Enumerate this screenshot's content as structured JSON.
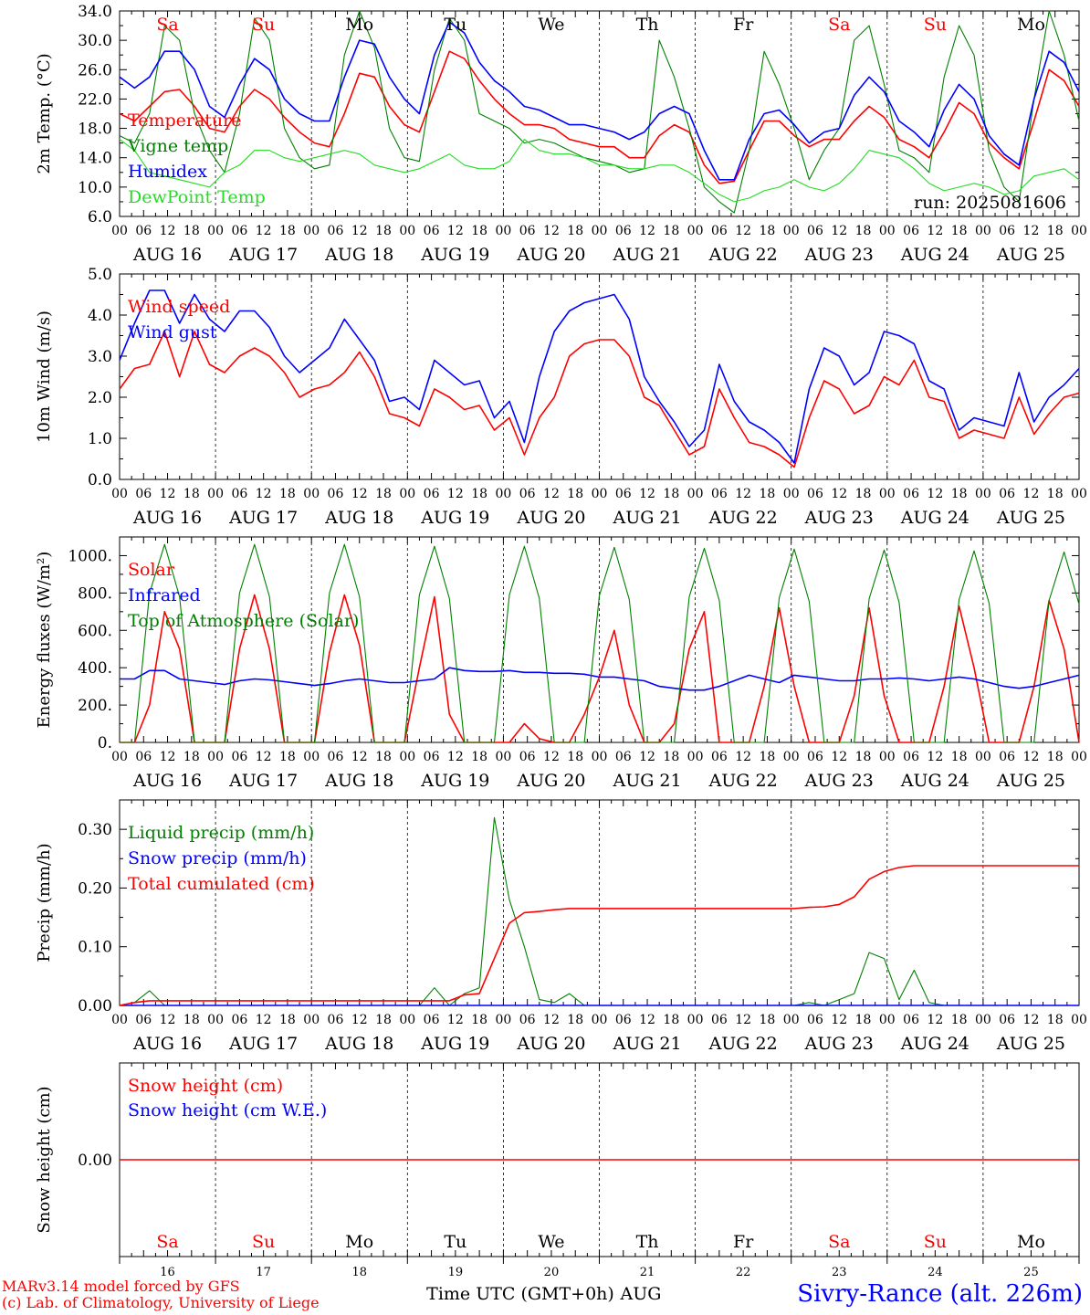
{
  "x_axis": {
    "hour_ticks": [
      "00",
      "06",
      "12",
      "18"
    ],
    "dates": [
      "AUG 16",
      "AUG 17",
      "AUG 18",
      "AUG 19",
      "AUG 20",
      "AUG 21",
      "AUG 22",
      "AUG 23",
      "AUG 24",
      "AUG 25"
    ],
    "weekdays": [
      "Sa",
      "Su",
      "Mo",
      "Tu",
      "We",
      "Th",
      "Fr",
      "Sa",
      "Su",
      "Mo"
    ],
    "weekend_flags": [
      true,
      true,
      false,
      false,
      false,
      false,
      false,
      true,
      true,
      false
    ],
    "day_numbers": [
      "16",
      "17",
      "18",
      "19",
      "20",
      "21",
      "22",
      "23",
      "24",
      "25"
    ],
    "title": "Time UTC (GMT+0h)",
    "month": "AUG"
  },
  "run_label": "run: 2025081606",
  "footer": {
    "line1": "MARv3.14 model forced by GFS",
    "line2": "(c) Lab. of Climatology, University of Liege",
    "station": "Sivry-Rance (alt. 226m)"
  },
  "colors": {
    "red": "#ff0000",
    "green": "#008000",
    "blue": "#0000ff",
    "lightgreen": "#22dd22",
    "weekend": "#ff0000"
  },
  "chart_data": [
    {
      "type": "line",
      "ylabel": "2m Temp. (°C)",
      "ylim": [
        6.0,
        34.0
      ],
      "yticks": [
        "6.0",
        "10.0",
        "14.0",
        "18.0",
        "22.0",
        "26.0",
        "30.0",
        "34.0"
      ],
      "x_hours_step": 6,
      "series": [
        {
          "name": "Temperature",
          "color": "#ff0000",
          "values": [
            20.0,
            19.0,
            21.0,
            23.0,
            23.3,
            21.0,
            18.0,
            17.5,
            21.0,
            23.3,
            22.0,
            19.5,
            17.5,
            16.0,
            15.5,
            20.0,
            25.5,
            25.0,
            21.0,
            18.5,
            17.5,
            23.0,
            28.5,
            27.5,
            24.5,
            22.0,
            20.0,
            18.5,
            18.5,
            18.0,
            16.5,
            16.0,
            15.5,
            15.5,
            14.0,
            14.0,
            17.0,
            18.5,
            17.5,
            13.0,
            10.5,
            10.8,
            15.0,
            19.0,
            19.0,
            17.0,
            15.5,
            16.5,
            16.5,
            19.0,
            21.0,
            19.5,
            16.5,
            15.5,
            14.0,
            17.5,
            21.5,
            20.0,
            16.0,
            14.0,
            12.5,
            19.0,
            26.0,
            24.5,
            21.0
          ]
        },
        {
          "name": "Vigne temp",
          "color": "#008000",
          "values": [
            17.0,
            16.0,
            20.0,
            32.0,
            30.0,
            20.0,
            15.0,
            12.0,
            20.0,
            33.0,
            30.0,
            18.0,
            14.0,
            12.5,
            13.0,
            28.0,
            34.0,
            29.0,
            18.0,
            14.0,
            13.5,
            26.0,
            33.0,
            30.0,
            20.0,
            19.0,
            18.0,
            16.0,
            16.5,
            16.0,
            15.0,
            14.0,
            13.5,
            13.0,
            12.0,
            12.5,
            30.0,
            25.0,
            18.0,
            10.0,
            8.0,
            6.5,
            15.0,
            28.5,
            24.0,
            18.0,
            11.0,
            15.0,
            18.0,
            30.0,
            32.0,
            24.0,
            15.0,
            14.0,
            12.0,
            25.0,
            32.0,
            28.0,
            15.0,
            10.0,
            8.0,
            22.0,
            34.0,
            28.0,
            19.0
          ]
        },
        {
          "name": "Humidex",
          "color": "#0000ff",
          "values": [
            25.0,
            23.5,
            25.0,
            28.5,
            28.5,
            26.0,
            21.0,
            19.5,
            24.0,
            27.5,
            26.0,
            22.0,
            20.0,
            19.0,
            19.0,
            25.0,
            30.0,
            29.5,
            25.0,
            22.0,
            20.0,
            28.0,
            32.5,
            31.0,
            27.0,
            24.5,
            23.0,
            21.0,
            20.5,
            19.5,
            18.5,
            18.5,
            18.0,
            17.5,
            16.5,
            17.5,
            20.0,
            21.0,
            20.0,
            15.0,
            11.0,
            11.0,
            16.5,
            20.0,
            20.5,
            18.5,
            16.0,
            17.5,
            18.0,
            22.5,
            25.0,
            23.0,
            19.0,
            17.5,
            15.5,
            20.5,
            24.0,
            22.0,
            17.0,
            14.5,
            13.0,
            22.0,
            28.5,
            27.0,
            23.0
          ]
        },
        {
          "name": "DewPoint Temp",
          "color": "#22dd22",
          "values": [
            16.5,
            15.0,
            12.0,
            11.5,
            11.0,
            10.5,
            10.0,
            12.0,
            13.0,
            15.0,
            15.0,
            14.0,
            13.5,
            14.0,
            14.5,
            15.0,
            14.5,
            13.0,
            12.5,
            12.0,
            12.5,
            13.5,
            14.5,
            13.0,
            12.5,
            12.5,
            13.5,
            16.5,
            15.0,
            14.5,
            14.5,
            14.0,
            13.0,
            13.0,
            12.5,
            12.5,
            13.0,
            13.0,
            12.0,
            10.5,
            9.0,
            8.0,
            8.5,
            9.5,
            10.0,
            11.0,
            10.0,
            9.5,
            10.5,
            12.5,
            15.0,
            14.5,
            14.0,
            12.5,
            10.5,
            9.5,
            10.0,
            10.5,
            10.0,
            9.0,
            9.5,
            11.5,
            12.0,
            12.5,
            11.0
          ]
        }
      ]
    },
    {
      "type": "line",
      "ylabel": "10m Wind (m/s)",
      "ylim": [
        0.0,
        5.0
      ],
      "yticks": [
        "0.0",
        "1.0",
        "2.0",
        "3.0",
        "4.0",
        "5.0"
      ],
      "x_hours_step": 6,
      "series": [
        {
          "name": "Wind speed",
          "color": "#ff0000",
          "values": [
            2.2,
            2.7,
            2.8,
            3.6,
            2.5,
            3.6,
            2.8,
            2.6,
            3.0,
            3.2,
            3.0,
            2.6,
            2.0,
            2.2,
            2.3,
            2.6,
            3.1,
            2.5,
            1.6,
            1.5,
            1.3,
            2.2,
            2.0,
            1.7,
            1.8,
            1.2,
            1.5,
            0.6,
            1.5,
            2.0,
            3.0,
            3.3,
            3.4,
            3.4,
            3.0,
            2.0,
            1.8,
            1.2,
            0.6,
            0.8,
            2.2,
            1.5,
            0.9,
            0.8,
            0.6,
            0.3,
            1.5,
            2.4,
            2.2,
            1.6,
            1.8,
            2.5,
            2.3,
            2.9,
            2.0,
            1.9,
            1.0,
            1.2,
            1.1,
            1.0,
            2.0,
            1.1,
            1.6,
            2.0,
            2.1
          ]
        },
        {
          "name": "Wind gust",
          "color": "#0000ff",
          "values": [
            2.9,
            3.8,
            4.6,
            4.6,
            3.8,
            4.5,
            3.9,
            3.6,
            4.1,
            4.1,
            3.7,
            3.0,
            2.6,
            2.9,
            3.2,
            3.9,
            3.4,
            2.9,
            1.9,
            2.0,
            1.7,
            2.9,
            2.6,
            2.3,
            2.4,
            1.5,
            1.9,
            0.9,
            2.5,
            3.6,
            4.1,
            4.3,
            4.4,
            4.5,
            3.9,
            2.5,
            1.9,
            1.4,
            0.8,
            1.2,
            2.8,
            1.9,
            1.4,
            1.2,
            0.9,
            0.4,
            2.2,
            3.2,
            3.0,
            2.3,
            2.6,
            3.6,
            3.5,
            3.3,
            2.4,
            2.2,
            1.2,
            1.5,
            1.4,
            1.3,
            2.6,
            1.4,
            2.0,
            2.3,
            2.7
          ]
        }
      ]
    },
    {
      "type": "line",
      "ylabel": "Energy fluxes (W/m²)",
      "ylim": [
        0,
        1100
      ],
      "yticks": [
        "0.",
        "200.",
        "400.",
        "600.",
        "800.",
        "1000."
      ],
      "x_hours_step": 6,
      "series": [
        {
          "name": "Solar",
          "color": "#ff0000",
          "values": [
            0,
            0,
            200,
            700,
            500,
            0,
            0,
            0,
            500,
            790,
            500,
            0,
            0,
            0,
            480,
            790,
            520,
            0,
            0,
            0,
            400,
            780,
            150,
            0,
            0,
            0,
            0,
            100,
            20,
            0,
            0,
            150,
            350,
            600,
            200,
            0,
            0,
            100,
            500,
            700,
            0,
            0,
            0,
            300,
            720,
            300,
            0,
            0,
            0,
            250,
            720,
            250,
            0,
            0,
            0,
            300,
            730,
            400,
            0,
            0,
            0,
            300,
            760,
            500,
            0
          ]
        },
        {
          "name": "Infrared",
          "color": "#0000ff",
          "values": [
            340,
            340,
            385,
            385,
            340,
            330,
            320,
            310,
            330,
            340,
            335,
            325,
            315,
            305,
            315,
            330,
            340,
            330,
            320,
            320,
            330,
            340,
            400,
            385,
            380,
            380,
            385,
            375,
            375,
            370,
            370,
            365,
            350,
            350,
            340,
            330,
            300,
            290,
            280,
            280,
            300,
            330,
            360,
            340,
            320,
            360,
            350,
            340,
            330,
            330,
            340,
            340,
            345,
            340,
            330,
            340,
            350,
            340,
            320,
            300,
            290,
            300,
            320,
            340,
            360
          ]
        },
        {
          "name": "Top of Atmosphere (Solar)",
          "color": "#008000",
          "values": [
            0,
            0,
            800,
            1060,
            780,
            0,
            0,
            0,
            800,
            1060,
            780,
            0,
            0,
            0,
            800,
            1060,
            780,
            0,
            0,
            0,
            790,
            1050,
            770,
            0,
            0,
            0,
            790,
            1050,
            770,
            0,
            0,
            0,
            785,
            1045,
            765,
            0,
            0,
            0,
            780,
            1040,
            760,
            0,
            0,
            0,
            775,
            1035,
            755,
            0,
            0,
            0,
            770,
            1030,
            750,
            0,
            0,
            0,
            765,
            1025,
            745,
            0,
            0,
            0,
            760,
            1020,
            740
          ]
        }
      ]
    },
    {
      "type": "line",
      "ylabel": "Precip (mm/h)",
      "ylim": [
        0.0,
        0.35
      ],
      "yticks": [
        "0.00",
        "0.10",
        "0.20",
        "0.30"
      ],
      "x_hours_step": 6,
      "series": [
        {
          "name": "Liquid precip (mm/h)",
          "color": "#008000",
          "values": [
            0,
            0.005,
            0.025,
            0,
            0,
            0,
            0,
            0,
            0,
            0,
            0,
            0,
            0,
            0,
            0,
            0,
            0,
            0,
            0,
            0,
            0,
            0.03,
            0,
            0.02,
            0.03,
            0.32,
            0.18,
            0.1,
            0.01,
            0.005,
            0.02,
            0,
            0,
            0,
            0,
            0,
            0,
            0,
            0,
            0,
            0,
            0,
            0,
            0,
            0,
            0,
            0.005,
            0,
            0.01,
            0.02,
            0.09,
            0.08,
            0.01,
            0.06,
            0.005,
            0,
            0,
            0,
            0,
            0,
            0,
            0,
            0,
            0,
            0
          ]
        },
        {
          "name": "Snow precip (mm/h)",
          "color": "#0000ff",
          "values": [
            0,
            0,
            0,
            0,
            0,
            0,
            0,
            0,
            0,
            0,
            0,
            0,
            0,
            0,
            0,
            0,
            0,
            0,
            0,
            0,
            0,
            0,
            0,
            0,
            0,
            0,
            0,
            0,
            0,
            0,
            0,
            0,
            0,
            0,
            0,
            0,
            0,
            0,
            0,
            0,
            0,
            0,
            0,
            0,
            0,
            0,
            0,
            0,
            0,
            0,
            0,
            0,
            0,
            0,
            0,
            0,
            0,
            0,
            0,
            0,
            0,
            0,
            0,
            0,
            0
          ]
        },
        {
          "name": "Total cumulated (cm)",
          "color": "#ff0000",
          "values": [
            0,
            0.005,
            0.008,
            0.008,
            0.008,
            0.008,
            0.008,
            0.008,
            0.008,
            0.008,
            0.008,
            0.008,
            0.008,
            0.008,
            0.008,
            0.008,
            0.008,
            0.008,
            0.008,
            0.008,
            0.008,
            0.008,
            0.008,
            0.018,
            0.02,
            0.08,
            0.14,
            0.158,
            0.16,
            0.163,
            0.165,
            0.165,
            0.165,
            0.165,
            0.165,
            0.165,
            0.165,
            0.165,
            0.165,
            0.165,
            0.165,
            0.165,
            0.165,
            0.165,
            0.165,
            0.165,
            0.167,
            0.168,
            0.172,
            0.185,
            0.215,
            0.228,
            0.235,
            0.238,
            0.238,
            0.238,
            0.238,
            0.238,
            0.238,
            0.238,
            0.238,
            0.238,
            0.238,
            0.238,
            0.238
          ]
        }
      ]
    },
    {
      "type": "line",
      "ylabel": "Snow height (cm)",
      "ylim": [
        -1,
        1
      ],
      "yticks": [
        "0.00"
      ],
      "x_hours_step": 6,
      "series": [
        {
          "name": "Snow height (cm)",
          "color": "#ff0000",
          "values": [
            0,
            0
          ]
        },
        {
          "name": "Snow height (cm W.E.)",
          "color": "#0000ff",
          "values": []
        }
      ]
    }
  ]
}
